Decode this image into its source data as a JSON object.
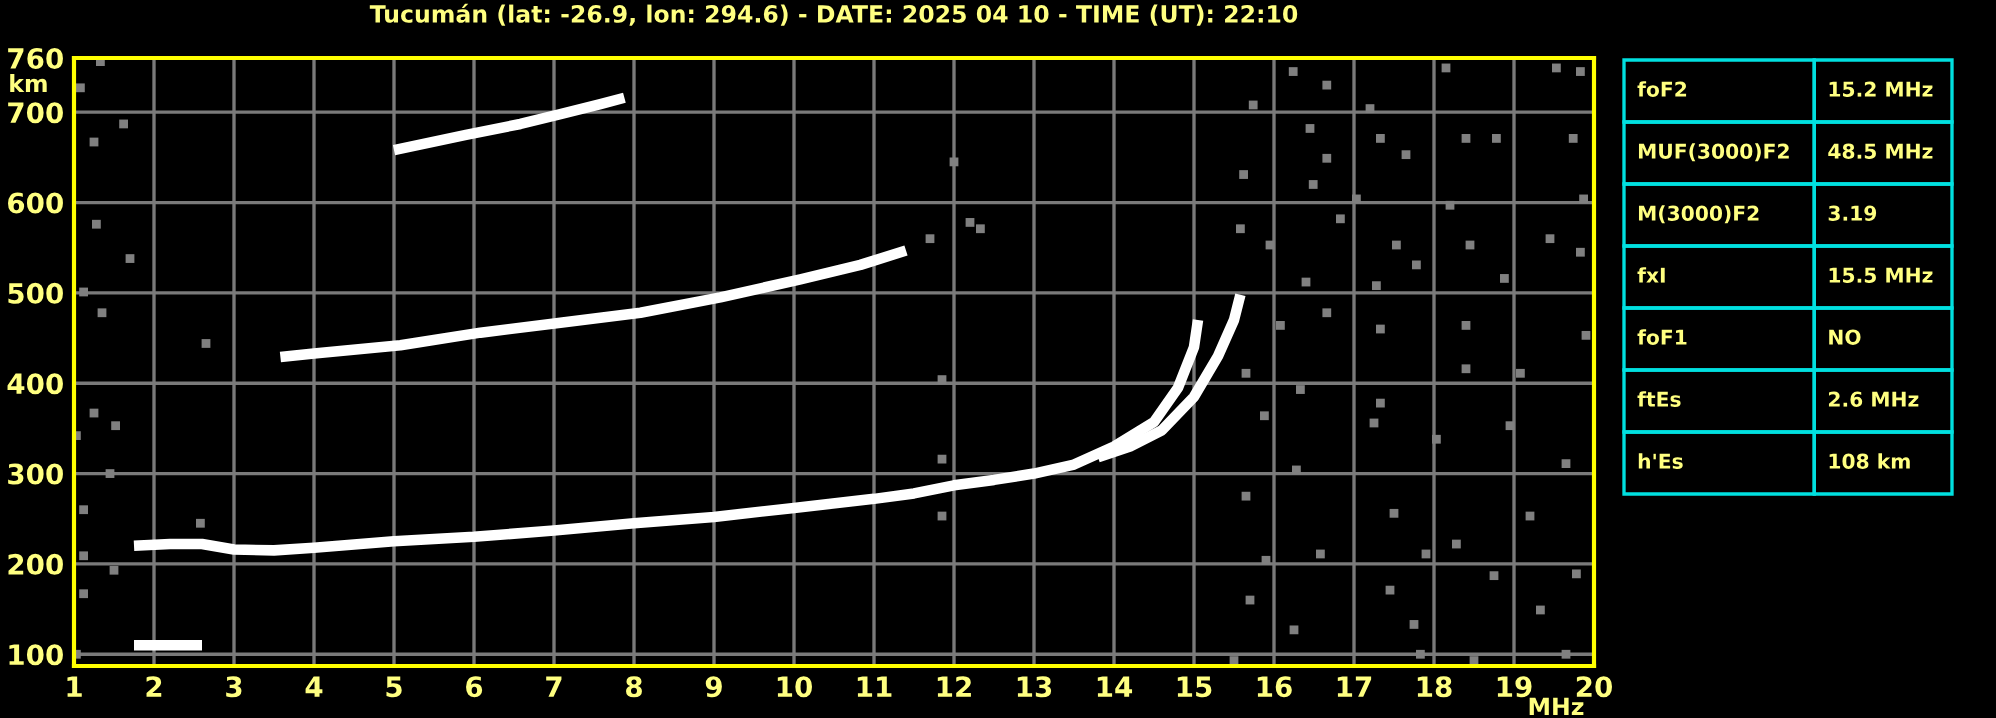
{
  "chart_data": [
    {
      "type": "line",
      "title": "Tucumán (lat: -26.9, lon: 294.6) - DATE: 2025 04 10 - TIME (UT): 22:10",
      "xlabel": "MHz",
      "ylabel": "km",
      "xlim": [
        1,
        20
      ],
      "ylim": [
        87,
        760
      ],
      "xticks": [
        1,
        2,
        3,
        4,
        5,
        6,
        7,
        8,
        9,
        10,
        11,
        12,
        13,
        14,
        15,
        16,
        17,
        18,
        19,
        20
      ],
      "yticks": [
        100,
        200,
        300,
        400,
        500,
        600,
        700,
        760
      ],
      "grid": true,
      "marker": "none",
      "line_style": "solid",
      "series": [
        {
          "type": "line",
          "color": "#ffffff",
          "x": [
            1.75,
            2.2,
            2.6,
            3.0,
            3.5,
            4.0,
            5.0,
            6.0,
            7.0,
            8.0,
            9.0,
            10.0,
            11.0,
            11.5,
            12.0,
            12.5,
            13.0,
            13.5,
            14.0,
            14.5,
            14.8,
            15.0,
            15.05
          ],
          "values": [
            220,
            222,
            222,
            216,
            215,
            218,
            225,
            230,
            237,
            245,
            252,
            262,
            272,
            278,
            287,
            293,
            300,
            310,
            330,
            357,
            395,
            440,
            470
          ]
        },
        {
          "type": "line",
          "color": "#ffffff",
          "x": [
            13.8,
            14.2,
            14.6,
            15.0,
            15.3,
            15.5,
            15.58
          ],
          "values": [
            318,
            330,
            348,
            385,
            430,
            470,
            498
          ]
        },
        {
          "type": "line",
          "color": "#ffffff",
          "x": [
            3.58,
            4.0,
            5.08,
            6.08,
            7.08,
            8.08,
            9.08,
            10.08,
            10.83,
            11.4
          ],
          "values": [
            429,
            433,
            442,
            456,
            467,
            478,
            495,
            515,
            531,
            547
          ]
        },
        {
          "type": "line",
          "color": "#ffffff",
          "x": [
            5.0,
            5.9,
            6.58,
            7.08,
            7.58,
            7.88
          ],
          "values": [
            658,
            675,
            687,
            698,
            709,
            716
          ]
        },
        {
          "type": "line",
          "color": "#ffffff",
          "x": [
            1.75,
            2.6
          ],
          "values": [
            110,
            110
          ]
        },
        {
          "type": "scatter",
          "color": "#808080",
          "marker": "square",
          "x": [
            16.24,
            16.66,
            17.2,
            18.15,
            19.53,
            19.83,
            15.74,
            16.45,
            17.33,
            18.4,
            18.78,
            19.74,
            16.66,
            17.65,
            15.62,
            16.49,
            17.03,
            18.2,
            19.87,
            15.58,
            15.95,
            16.83,
            17.53,
            17.78,
            18.45,
            19.45,
            19.83,
            16.4,
            17.28,
            18.88,
            16.66,
            16.08,
            17.33,
            18.4,
            19.9,
            12.33,
            12.0,
            15.65,
            16.33,
            17.33,
            18.4,
            19.08,
            15.88,
            17.25,
            18.03,
            18.95,
            19.65,
            16.28,
            15.65,
            17.5,
            18.28,
            19.2,
            15.9,
            16.58,
            17.9,
            18.75,
            19.78,
            15.7,
            17.45,
            19.33,
            17.75,
            16.25,
            15.5,
            17.83,
            19.65,
            18.5,
            1.08,
            1.33,
            1.62,
            1.25,
            1.28,
            1.7,
            1.12,
            1.35,
            2.65,
            1.03,
            1.25,
            1.52,
            1.45,
            1.12,
            1.12,
            1.5,
            1.12,
            1.03,
            2.58,
            11.85,
            11.85,
            11.85,
            11.7,
            12.2
          ],
          "values": [
            745,
            730,
            704,
            749,
            749,
            745,
            708,
            682,
            671,
            671,
            671,
            671,
            649,
            653,
            631,
            620,
            604,
            597,
            604,
            571,
            553,
            582,
            553,
            531,
            553,
            560,
            545,
            512,
            508,
            516,
            478,
            464,
            460,
            464,
            453,
            571,
            645,
            411,
            393,
            378,
            416,
            411,
            364,
            356,
            338,
            353,
            311,
            304,
            275,
            256,
            222,
            253,
            204,
            211,
            211,
            187,
            189,
            160,
            171,
            149,
            133,
            127,
            93,
            100,
            100,
            93,
            727,
            756,
            687,
            667,
            576,
            538,
            501,
            478,
            444,
            342,
            367,
            353,
            300,
            260,
            209,
            193,
            167,
            100,
            245,
            316,
            404,
            253,
            560,
            578
          ]
        }
      ]
    },
    {
      "type": "other",
      "annotations": [
        "foF2",
        "15.2 MHz",
        "MUF(3000)F2",
        "48.5 MHz",
        "M(3000)F2",
        "3.19",
        "fxI",
        "15.5 MHz",
        "foF1",
        "NO",
        "ftEs",
        "2.6 MHz",
        "h'Es",
        "108 km"
      ]
    }
  ]
}
